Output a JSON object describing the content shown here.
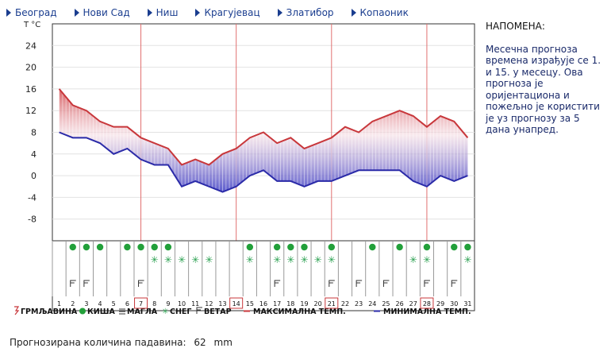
{
  "nav": [
    {
      "label": "Београд"
    },
    {
      "label": "Нови Сад"
    },
    {
      "label": "Ниш"
    },
    {
      "label": "Крагујевац"
    },
    {
      "label": "Златибор"
    },
    {
      "label": "Копаоник"
    }
  ],
  "note": {
    "title": "НАПОМЕНА:",
    "text": "Месечна прогноза времена израђује се 1. и 15. у месецу. Ова прогноза је оријентациона и пожељно је користити је уз прогнозу за 5 дана унапред."
  },
  "precip": {
    "label": "Прогнозирана количина падавина:",
    "value": "62",
    "unit": "mm"
  },
  "legend": {
    "thunder": "ГРМЉАВИНА",
    "rain": "КИША",
    "fog": "МАГЛА",
    "snow": "СНЕГ",
    "wind": "ВЕТАР",
    "max": "МАКСИМАЛНА ТЕМП.",
    "min": "МИНИМАЛНА ТЕМП."
  },
  "chart_data": {
    "type": "area",
    "ylabel": "T °C",
    "yticks": [
      24,
      20,
      16,
      12,
      8,
      4,
      0,
      -4,
      -8
    ],
    "ylim": [
      -12,
      28
    ],
    "days": [
      1,
      2,
      3,
      4,
      5,
      6,
      7,
      8,
      9,
      10,
      11,
      12,
      13,
      14,
      15,
      16,
      17,
      18,
      19,
      20,
      21,
      22,
      23,
      24,
      25,
      26,
      27,
      28,
      29,
      30,
      31
    ],
    "highlight_days": [
      7,
      14,
      21,
      28
    ],
    "series": [
      {
        "name": "МАКСИМАЛНА ТЕМП.",
        "color": "#c8373b",
        "values": [
          16,
          13,
          12,
          10,
          9,
          9,
          7,
          6,
          5,
          2,
          3,
          2,
          4,
          5,
          7,
          8,
          6,
          7,
          5,
          6,
          7,
          9,
          8,
          10,
          11,
          12,
          11,
          9,
          11,
          10,
          7
        ]
      },
      {
        "name": "МИНИМАЛНА ТЕМП.",
        "color": "#2a2aa8",
        "values": [
          8,
          7,
          7,
          6,
          4,
          5,
          3,
          2,
          2,
          -2,
          -1,
          -2,
          -3,
          -2,
          0,
          1,
          -1,
          -1,
          -2,
          -1,
          -1,
          0,
          1,
          1,
          1,
          1,
          -1,
          -2,
          0,
          -1,
          0
        ]
      }
    ],
    "weather_icons": {
      "rain": [
        2,
        3,
        4,
        6,
        7,
        8,
        9,
        15,
        17,
        18,
        19,
        21,
        24,
        26,
        28,
        30,
        31
      ],
      "snow": [
        8,
        9,
        10,
        11,
        12,
        15,
        17,
        18,
        19,
        20,
        21,
        27,
        28,
        31
      ],
      "wind": [
        2,
        3,
        7,
        17,
        21,
        23,
        25,
        28,
        30
      ]
    }
  }
}
